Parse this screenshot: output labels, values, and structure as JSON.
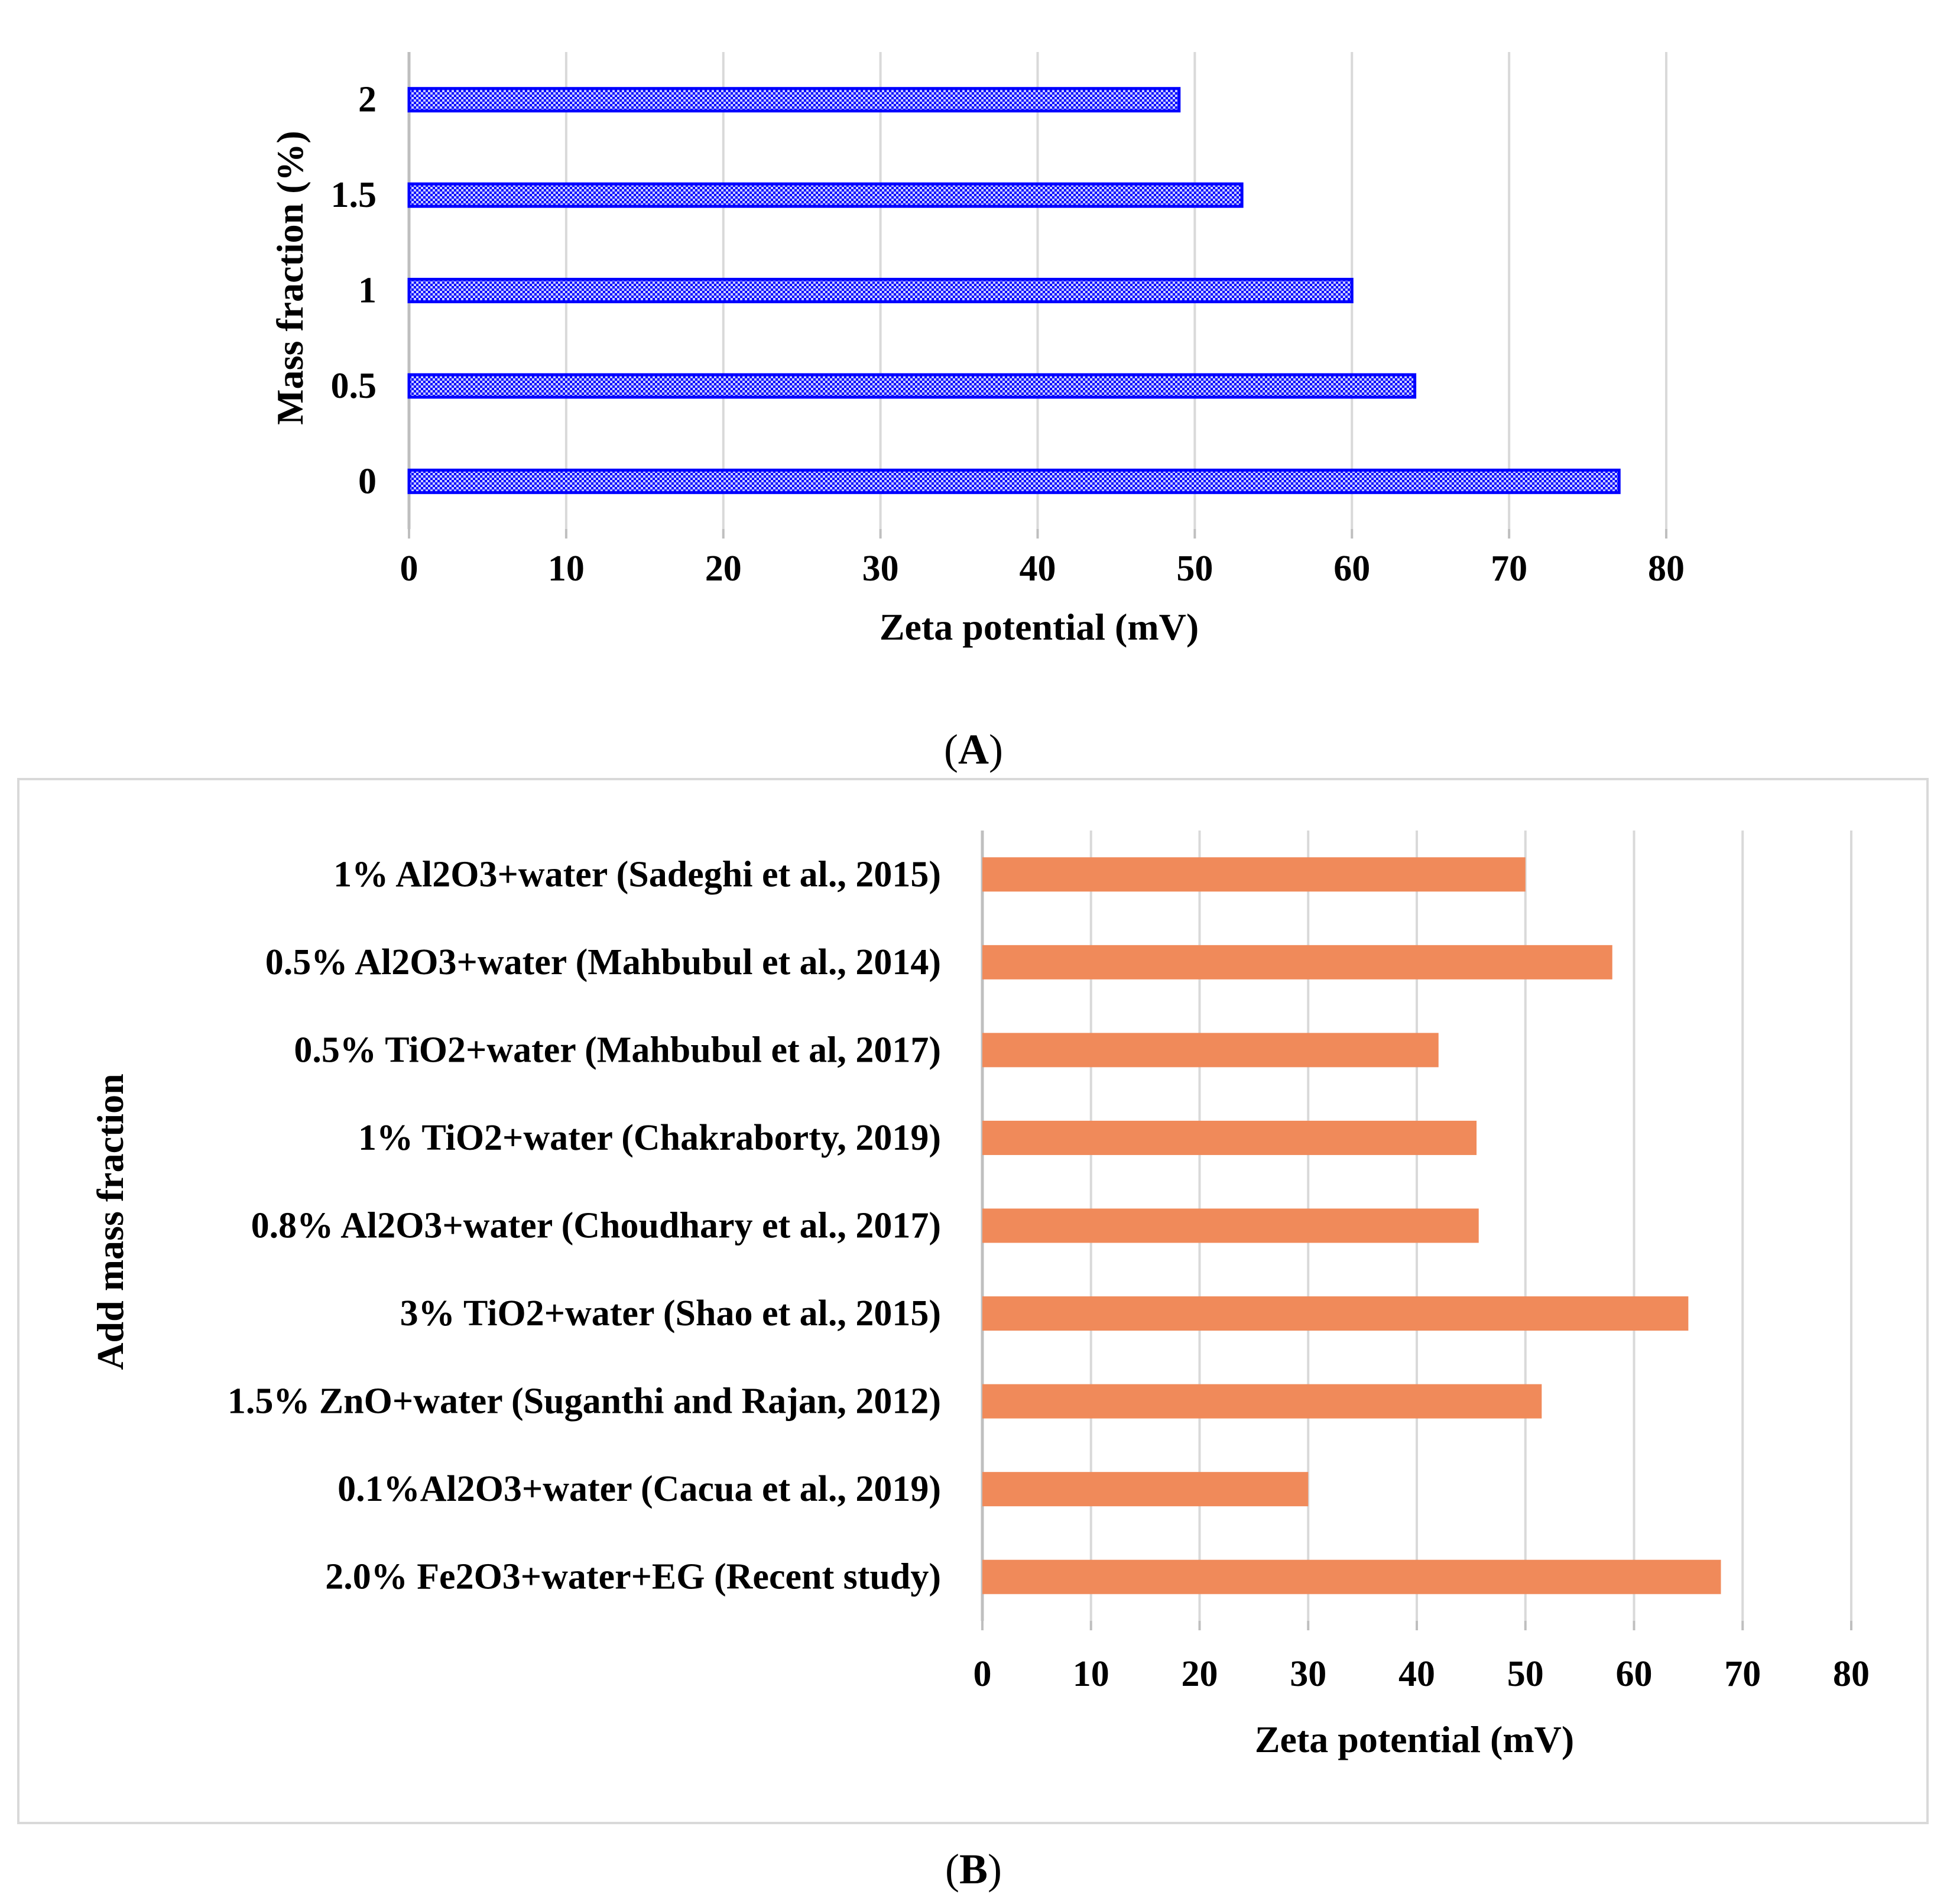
{
  "chart_data": [
    {
      "type": "bar",
      "orientation": "horizontal",
      "panel_label": "A",
      "categories": [
        "0",
        "0.5",
        "1",
        "1.5",
        "2"
      ],
      "series": [
        {
          "values": [
            77,
            64,
            60,
            53,
            49
          ]
        }
      ],
      "xlabel": "Zeta potential (mV)",
      "ylabel": "Mass fraction (%)",
      "xlim": [
        0,
        80
      ],
      "xticks": [
        "0",
        "10",
        "20",
        "30",
        "40",
        "50",
        "60",
        "70",
        "80"
      ],
      "grid": "vertical",
      "bar_fill": "checkered",
      "colors": {
        "bar": "#0000ff",
        "bar_light": "#c8ccff"
      }
    },
    {
      "type": "bar",
      "orientation": "horizontal",
      "panel_label": "B",
      "categories": [
        "2.0% Fe2O3+water+EG (Recent study)",
        "0.1%Al2O3+water (Cacua et al., 2019)",
        "1.5% ZnO+water (Suganthi and Rajan, 2012)",
        "3% TiO2+water (Shao et al., 2015)",
        "0.8% Al2O3+water (Choudhary et al., 2017)",
        "1% TiO2+water (Chakraborty, 2019)",
        "0.5% TiO2+water (Mahbubul et al, 2017)",
        "0.5% Al2O3+water (Mahbubul et al., 2014)",
        "1% Al2O3+water (Sadeghi et al., 2015)"
      ],
      "series": [
        {
          "values": [
            68,
            30,
            51.5,
            65,
            45.7,
            45.5,
            42,
            58,
            50
          ]
        }
      ],
      "xlabel": "Zeta potential (mV)",
      "ylabel": "Add mass fraction",
      "xlim": [
        0,
        80
      ],
      "xticks": [
        "0",
        "10",
        "20",
        "30",
        "40",
        "50",
        "60",
        "70",
        "80"
      ],
      "grid": "vertical",
      "colors": {
        "bar": "#f08a5a",
        "grid": "#d9d9d9",
        "frame": "#d9d9d9"
      }
    }
  ]
}
